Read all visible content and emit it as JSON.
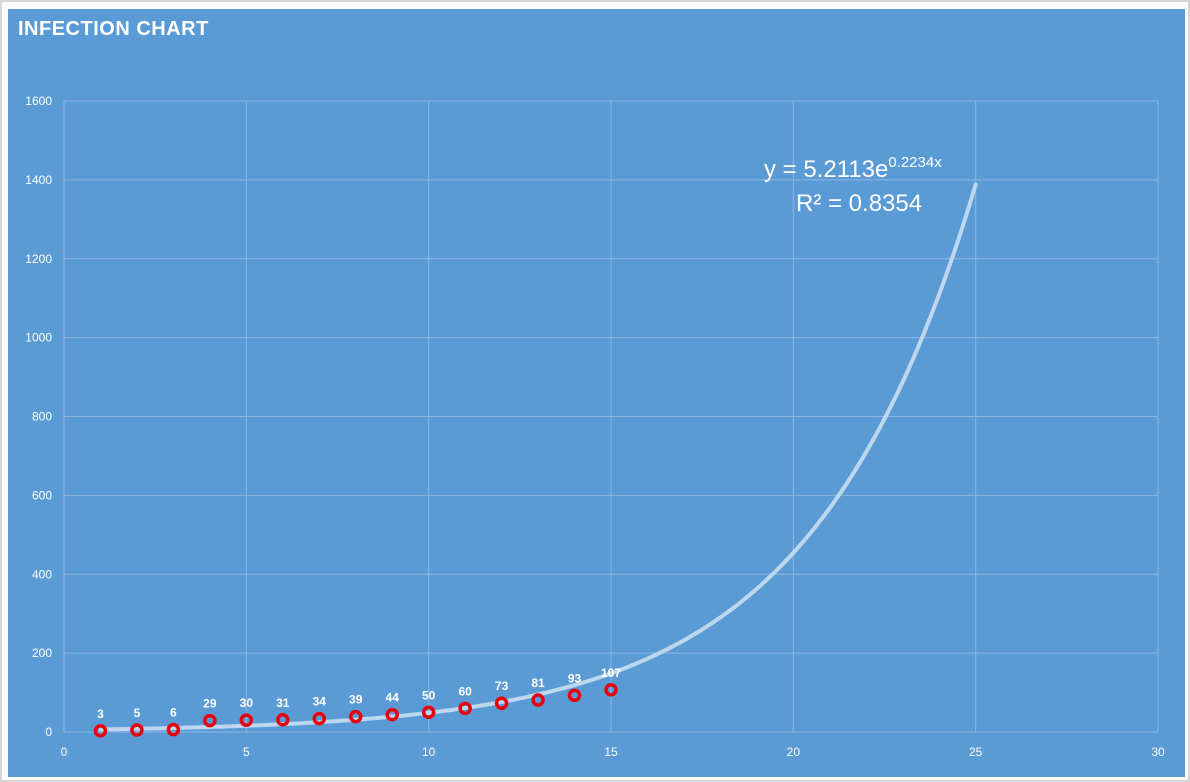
{
  "chart_data": {
    "type": "scatter",
    "title": "INFECTION CHART",
    "xlabel": "",
    "ylabel": "",
    "xlim": [
      0,
      30
    ],
    "ylim": [
      0,
      1600
    ],
    "x_ticks": [
      0,
      5,
      10,
      15,
      20,
      25,
      30
    ],
    "y_ticks": [
      0,
      200,
      400,
      600,
      800,
      1000,
      1200,
      1400,
      1600
    ],
    "grid": true,
    "legend": "none",
    "series": [
      {
        "x": [
          1,
          2,
          3,
          4,
          5,
          6,
          7,
          8,
          9,
          10,
          11,
          12,
          13,
          14,
          15
        ],
        "y": [
          3,
          5,
          6,
          29,
          30,
          31,
          34,
          39,
          44,
          50,
          60,
          73,
          81,
          93,
          107
        ],
        "data_labels": [
          "3",
          "5",
          "6",
          "29",
          "30",
          "31",
          "34",
          "39",
          "44",
          "50",
          "60",
          "73",
          "81",
          "93",
          "107"
        ],
        "marker": "circle",
        "color": "#e8000b"
      }
    ],
    "trendline": {
      "type": "exponential",
      "a": 5.2113,
      "b": 0.2234,
      "x_range": [
        1,
        25
      ],
      "equation_prefix": "y = 5.2113e",
      "equation_exponent": "0.2234x",
      "r_squared": "R² = 0.8354",
      "color": "#bdd7ee"
    },
    "colors": {
      "background": "#5b9bd5",
      "gridline": "#8db6e3",
      "text": "#ffffff"
    }
  }
}
